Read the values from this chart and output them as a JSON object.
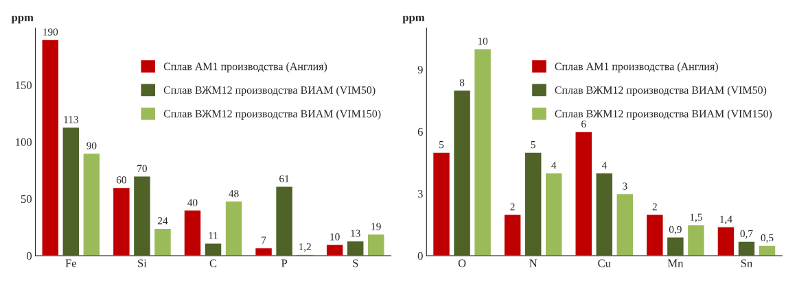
{
  "chart_data": [
    {
      "type": "bar",
      "ylabel": "ppm",
      "categories": [
        "Fe",
        "Si",
        "C",
        "P",
        "S"
      ],
      "ylim": [
        0,
        200
      ],
      "yticks": [
        0,
        50,
        100,
        150
      ],
      "grid": false,
      "legend": "top right",
      "series": [
        {
          "name": "Сплав АМ1 производства (Англия)",
          "color": "#c00000",
          "values": [
            190,
            60,
            40,
            7,
            10
          ],
          "value_labels": [
            "190",
            "60",
            "40",
            "7",
            "10"
          ]
        },
        {
          "name": "Сплав ВЖМ12 производства ВИАМ (VIM50)",
          "color": "#4f6228",
          "values": [
            113,
            70,
            11,
            61,
            13
          ],
          "value_labels": [
            "113",
            "70",
            "11",
            "61",
            "13"
          ]
        },
        {
          "name": "Сплав ВЖМ12 производства ВИАМ (VIM150)",
          "color": "#9bbb59",
          "values": [
            90,
            24,
            48,
            1.2,
            19
          ],
          "value_labels": [
            "90",
            "24",
            "48",
            "1,2",
            "19"
          ]
        }
      ]
    },
    {
      "type": "bar",
      "ylabel": "ppm",
      "categories": [
        "O",
        "N",
        "Cu",
        "Mn",
        "Sn"
      ],
      "ylim": [
        0,
        11
      ],
      "yticks": [
        0,
        3,
        6,
        9
      ],
      "grid": false,
      "legend": "top right",
      "series": [
        {
          "name": "Сплав АМ1 производства (Англия)",
          "color": "#c00000",
          "values": [
            5,
            2,
            6,
            2,
            1.4
          ],
          "value_labels": [
            "5",
            "2",
            "6",
            "2",
            "1,4"
          ]
        },
        {
          "name": "Сплав ВЖМ12 производства ВИАМ (VIM50)",
          "color": "#4f6228",
          "values": [
            8,
            5,
            4,
            0.9,
            0.7
          ],
          "value_labels": [
            "8",
            "5",
            "4",
            "0,9",
            "0,7"
          ]
        },
        {
          "name": "Сплав ВЖМ12 производства ВИАМ (VIM150)",
          "color": "#9bbb59",
          "values": [
            10,
            4,
            3,
            1.5,
            0.5
          ],
          "value_labels": [
            "10",
            "4",
            "3",
            "1,5",
            "0,5"
          ]
        }
      ]
    }
  ]
}
